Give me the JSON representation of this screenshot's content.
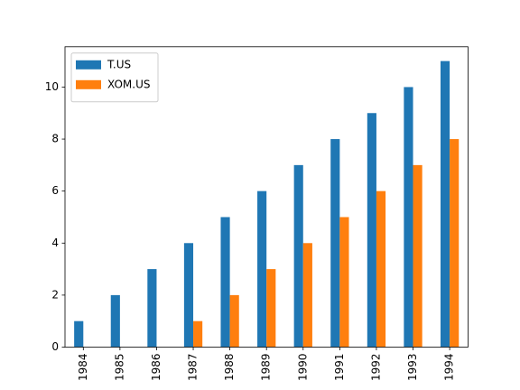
{
  "chart_data": {
    "type": "bar",
    "categories": [
      "1984",
      "1985",
      "1986",
      "1987",
      "1988",
      "1989",
      "1990",
      "1991",
      "1992",
      "1993",
      "1994"
    ],
    "series": [
      {
        "name": "T.US",
        "color": "#1f77b4",
        "values": [
          1,
          2,
          3,
          4,
          5,
          6,
          7,
          8,
          9,
          10,
          11
        ]
      },
      {
        "name": "XOM.US",
        "color": "#ff7f0e",
        "values": [
          0,
          0,
          0,
          1,
          2,
          3,
          4,
          5,
          6,
          7,
          8
        ]
      }
    ],
    "ylim": [
      0,
      11.55
    ],
    "yticks": [
      0,
      2,
      4,
      6,
      8,
      10
    ],
    "grid": false,
    "legend": "upper left"
  }
}
